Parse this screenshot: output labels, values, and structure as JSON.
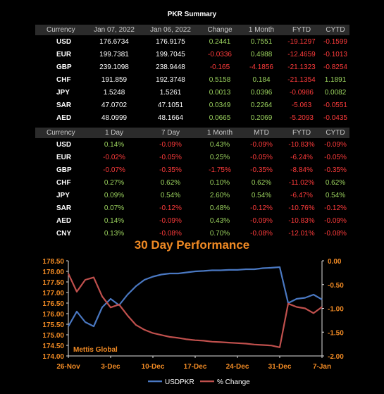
{
  "title": "PKR Summary",
  "table1": {
    "headers": [
      "Currency",
      "Jan 07, 2022",
      "Jan 06, 2022",
      "Change",
      "1 Month",
      "FYTD",
      "CYTD"
    ],
    "rows": [
      [
        "USD",
        "176.6734",
        "176.9175",
        "0.2441",
        "0.7551",
        "-19.1297",
        "-0.1599"
      ],
      [
        "EUR",
        "199.7381",
        "199.7045",
        "-0.0336",
        "0.4988",
        "-12.4659",
        "-0.1013"
      ],
      [
        "GBP",
        "239.1098",
        "238.9448",
        "-0.165",
        "-4.1856",
        "-21.1323",
        "-0.8254"
      ],
      [
        "CHF",
        "191.859",
        "192.3748",
        "0.5158",
        "0.184",
        "-21.1354",
        "1.1891"
      ],
      [
        "JPY",
        "1.5248",
        "1.5261",
        "0.0013",
        "0.0396",
        "-0.0986",
        "0.0082"
      ],
      [
        "SAR",
        "47.0702",
        "47.1051",
        "0.0349",
        "0.2264",
        "-5.063",
        "-0.0551"
      ],
      [
        "AED",
        "48.0999",
        "48.1664",
        "0.0665",
        "0.2069",
        "-5.2093",
        "-0.0435"
      ],
      [
        "CNY",
        "27.7191",
        "27.7542",
        "0.0351",
        "0.1945",
        "-3.3281",
        "-0.0212"
      ]
    ]
  },
  "table2": {
    "headers": [
      "Currency",
      "1 Day",
      "7 Day",
      "1 Month",
      "MTD",
      "FYTD",
      "CYTD"
    ],
    "rows": [
      [
        "USD",
        "0.14%",
        "-0.09%",
        "0.43%",
        "-0.09%",
        "-10.83%",
        "-0.09%"
      ],
      [
        "EUR",
        "-0.02%",
        "-0.05%",
        "0.25%",
        "-0.05%",
        "-6.24%",
        "-0.05%"
      ],
      [
        "GBP",
        "-0.07%",
        "-0.35%",
        "-1.75%",
        "-0.35%",
        "-8.84%",
        "-0.35%"
      ],
      [
        "CHF",
        "0.27%",
        "0.62%",
        "0.10%",
        "0.62%",
        "-11.02%",
        "0.62%"
      ],
      [
        "JPY",
        "0.09%",
        "0.54%",
        "2.60%",
        "0.54%",
        "-6.47%",
        "0.54%"
      ],
      [
        "SAR",
        "0.07%",
        "-0.12%",
        "0.48%",
        "-0.12%",
        "-10.76%",
        "-0.12%"
      ],
      [
        "AED",
        "0.14%",
        "-0.09%",
        "0.43%",
        "-0.09%",
        "-10.83%",
        "-0.09%"
      ],
      [
        "CNY",
        "0.13%",
        "-0.08%",
        "0.70%",
        "-0.08%",
        "-12.01%",
        "-0.08%"
      ]
    ]
  },
  "colors": {
    "positive": "#9bd25e",
    "negative": "#ff3b3b",
    "accent": "#f08a24",
    "usd_line": "#4a78c2",
    "change_line": "#c0504d"
  },
  "chart_data": {
    "type": "line",
    "title": "30 Day Performance",
    "watermark": "Mettis Global",
    "x_ticks": [
      "26-Nov",
      "3-Dec",
      "10-Dec",
      "17-Dec",
      "24-Dec",
      "31-Dec",
      "7-Jan"
    ],
    "x": [
      "26-Nov",
      "29-Nov",
      "30-Nov",
      "1-Dec",
      "2-Dec",
      "3-Dec",
      "6-Dec",
      "7-Dec",
      "8-Dec",
      "9-Dec",
      "10-Dec",
      "13-Dec",
      "14-Dec",
      "15-Dec",
      "16-Dec",
      "17-Dec",
      "20-Dec",
      "21-Dec",
      "22-Dec",
      "23-Dec",
      "24-Dec",
      "27-Dec",
      "28-Dec",
      "29-Dec",
      "30-Dec",
      "31-Dec",
      "3-Jan",
      "4-Jan",
      "5-Jan",
      "6-Jan",
      "7-Jan"
    ],
    "y_left": {
      "min": 174.0,
      "max": 178.5,
      "step": 0.5,
      "ticks": [
        "174.00",
        "174.50",
        "175.00",
        "175.50",
        "176.00",
        "176.50",
        "177.00",
        "177.50",
        "178.00",
        "178.50"
      ]
    },
    "y_right": {
      "min": -2.0,
      "max": 0.0,
      "step": 0.5,
      "ticks": [
        "-2.00",
        "-1.50",
        "-1.00",
        "-0.50",
        "0.00"
      ]
    },
    "series": [
      {
        "name": "USDPKR",
        "axis": "left",
        "values": [
          175.4,
          176.1,
          175.6,
          175.4,
          176.3,
          176.7,
          176.4,
          176.9,
          177.3,
          177.6,
          177.75,
          177.85,
          177.9,
          177.9,
          177.95,
          178.0,
          178.02,
          178.05,
          178.05,
          178.07,
          178.07,
          178.1,
          178.1,
          178.15,
          178.17,
          178.2,
          176.5,
          176.7,
          176.75,
          176.9,
          176.67
        ]
      },
      {
        "name": "% Change",
        "axis": "right",
        "values": [
          -0.27,
          -0.65,
          -0.4,
          -0.35,
          -0.75,
          -0.98,
          -0.92,
          -1.15,
          -1.35,
          -1.45,
          -1.52,
          -1.56,
          -1.6,
          -1.62,
          -1.65,
          -1.67,
          -1.68,
          -1.7,
          -1.71,
          -1.72,
          -1.73,
          -1.74,
          -1.76,
          -1.77,
          -1.78,
          -1.82,
          -0.9,
          -0.97,
          -1.0,
          -1.1,
          -0.97
        ]
      }
    ],
    "legend": [
      "USDPKR",
      "% Change"
    ]
  }
}
